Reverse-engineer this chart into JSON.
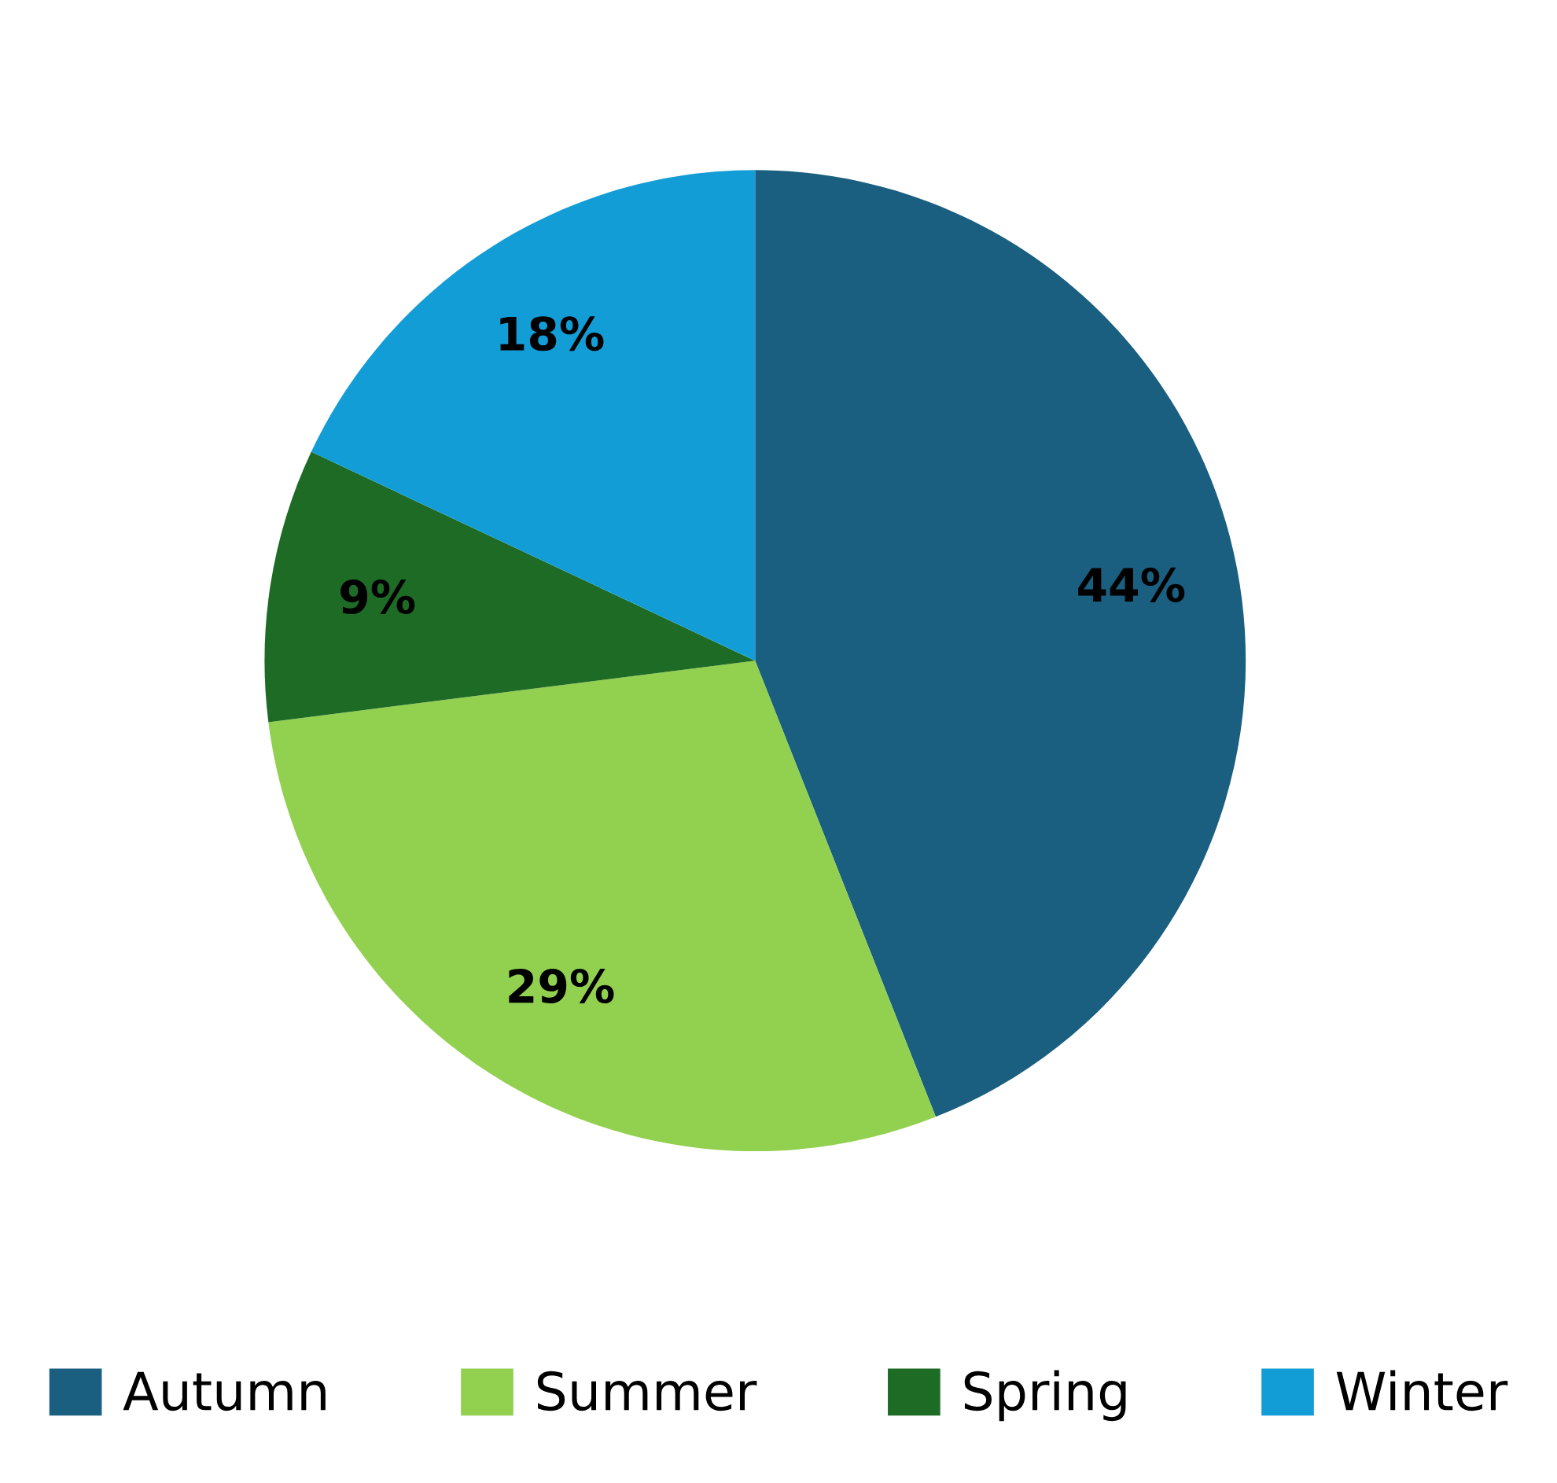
{
  "chart_data": {
    "type": "pie",
    "categories": [
      "Autumn",
      "Summer",
      "Spring",
      "Winter"
    ],
    "values": [
      44,
      29,
      9,
      18
    ],
    "colors": [
      "#1a5f80",
      "#92d050",
      "#1e6b26",
      "#139dd6"
    ],
    "value_labels": [
      "44%",
      "29%",
      "9%",
      "18%"
    ],
    "legend": "bottom"
  }
}
